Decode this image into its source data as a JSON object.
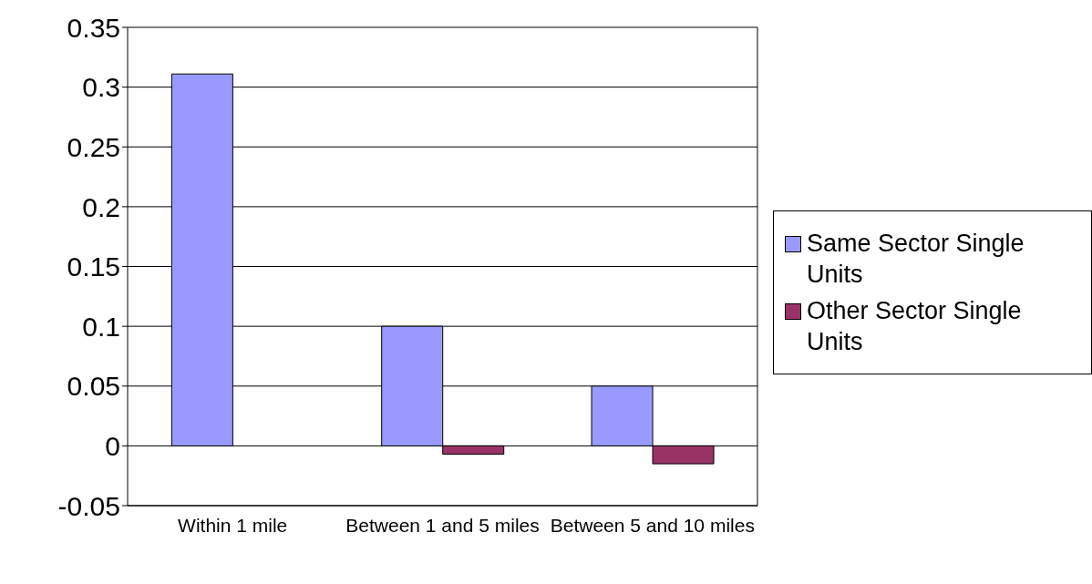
{
  "chart_data": {
    "type": "bar",
    "categories": [
      "Within 1 mile",
      "Between 1 and 5 miles",
      "Between 5 and 10 miles"
    ],
    "series": [
      {
        "name": "Same Sector Single Units",
        "color": "#9999ff",
        "values": [
          0.311,
          0.1,
          0.05
        ]
      },
      {
        "name": "Other Sector Single Units",
        "color": "#993366",
        "values": [
          0,
          -0.007,
          -0.015
        ]
      }
    ],
    "ylim": [
      -0.05,
      0.35
    ],
    "yticks": [
      -0.05,
      0,
      0.05,
      0.1,
      0.15,
      0.2,
      0.25,
      0.3,
      0.35
    ],
    "grid": "y",
    "legend": "right"
  }
}
